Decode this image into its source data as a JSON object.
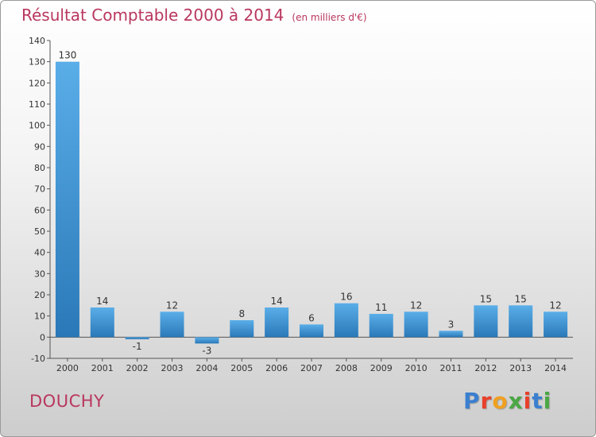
{
  "header": {
    "title": "Résultat Comptable 2000 à 2014",
    "subtitle": "(en milliers d'€)"
  },
  "footer": {
    "city": "DOUCHY",
    "logo_letters": [
      "P",
      "r",
      "o",
      "x",
      "i",
      "t",
      "i"
    ]
  },
  "colors": {
    "title": "#b9375e",
    "bar_light": "#5aaee8",
    "bar_dark": "#2a78b8",
    "logo": [
      "#3a7fd0",
      "#e8402a",
      "#f0a020",
      "#4aa844",
      "#e8402a",
      "#3a7fd0",
      "#4aa844"
    ]
  },
  "chart_data": {
    "type": "bar",
    "categories": [
      "2000",
      "2001",
      "2002",
      "2003",
      "2004",
      "2005",
      "2006",
      "2007",
      "2008",
      "2009",
      "2010",
      "2011",
      "2012",
      "2013",
      "2014"
    ],
    "values": [
      130,
      14,
      -1,
      12,
      -3,
      8,
      14,
      6,
      16,
      11,
      12,
      3,
      15,
      15,
      12
    ],
    "ylim": [
      -10,
      140
    ],
    "yticks": [
      -10,
      0,
      10,
      20,
      30,
      40,
      50,
      60,
      70,
      80,
      90,
      100,
      110,
      120,
      130,
      140
    ],
    "grid": false,
    "legend": "none"
  }
}
